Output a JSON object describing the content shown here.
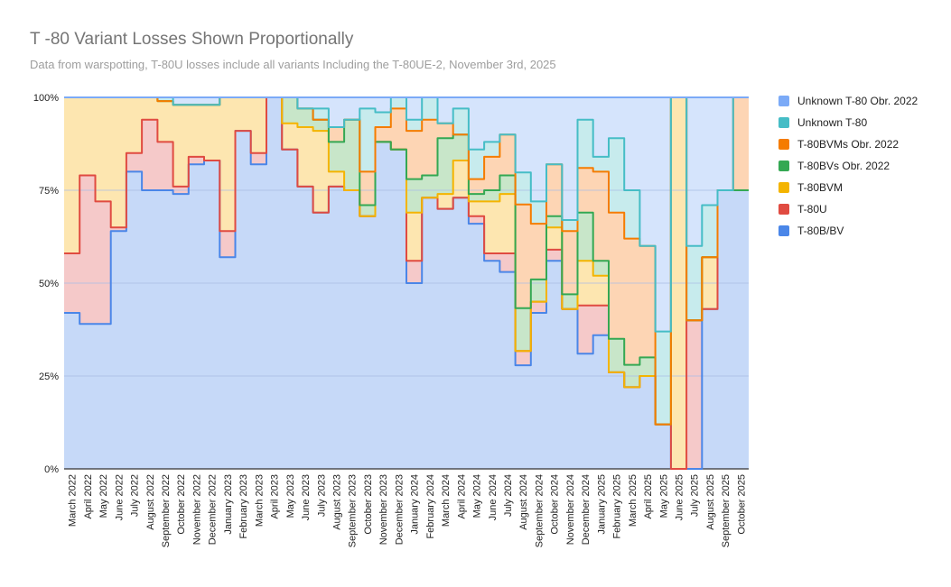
{
  "chart_data": {
    "type": "area",
    "stacking": "percent",
    "title": "T -80 Variant Losses Shown Proportionally",
    "subtitle": "Data from warspotting, T-80U losses include all variants Including the T-80UE-2, November 3rd, 2025",
    "y_ticks": [
      "0%",
      "25%",
      "50%",
      "75%",
      "100%"
    ],
    "ylim": [
      0,
      100
    ],
    "x_tick_labels": [
      "March 2022",
      "April 2022",
      "May 2022",
      "June 2022",
      "July 2022",
      "August 2022",
      "September 2022",
      "October 2022",
      "November 2022",
      "December 2022",
      "January 2023",
      "February 2023",
      "March 2023",
      "April 2023",
      "May 2023",
      "June 2023",
      "July 2023",
      "August 2023",
      "September 2023",
      "October 2023",
      "November 2023",
      "December 2023",
      "January 2024",
      "February 2024",
      "March 2024",
      "April 2024",
      "May 2024",
      "June 2024",
      "July 2024",
      "August 2024",
      "September 2024",
      "October 2024",
      "November 2024",
      "December 2024",
      "January 2025",
      "February 2025",
      "March 2025",
      "April 2025",
      "May 2025",
      "June 2025",
      "July 2025",
      "August 2025",
      "September 2025",
      "October 2025"
    ],
    "series": [
      {
        "name": "T-80B/BV",
        "color": "#4a86e8",
        "fill": "#c6d9f8",
        "values": [
          42,
          39,
          39,
          64,
          80,
          75,
          75,
          74,
          82,
          83,
          57,
          91,
          82,
          100,
          86,
          76,
          69,
          76,
          75,
          68,
          88,
          86,
          50,
          73,
          70,
          73,
          66,
          56,
          53,
          29,
          42,
          56,
          43,
          31,
          36,
          26,
          22,
          25,
          12,
          0,
          0,
          43,
          75,
          75
        ]
      },
      {
        "name": "T-80U",
        "color": "#e04b41",
        "fill": "#f5c9c9",
        "values": [
          16,
          40,
          33,
          1,
          5,
          19,
          13,
          2,
          2,
          0,
          7,
          0,
          3,
          0,
          0,
          0,
          0,
          0,
          0,
          0,
          0,
          0,
          6,
          0,
          0,
          0,
          2,
          2,
          5,
          4,
          3,
          3,
          0,
          13,
          8,
          0,
          0,
          0,
          0,
          0,
          40,
          0,
          0,
          0
        ]
      },
      {
        "name": "T-80BVM",
        "color": "#f4b400",
        "fill": "#fde6b0",
        "values": [
          42,
          21,
          28,
          35,
          15,
          6,
          11,
          22,
          14,
          15,
          36,
          9,
          15,
          0,
          7,
          16,
          22,
          4,
          0,
          0,
          0,
          0,
          13,
          0,
          4,
          10,
          4,
          14,
          16,
          0,
          0,
          6,
          0,
          12,
          8,
          0,
          0,
          0,
          0,
          100,
          0,
          14,
          0,
          0
        ]
      },
      {
        "name": "T-80BVs Obr. 2022",
        "color": "#34a853",
        "fill": "#c8e6c9",
        "values": [
          0,
          0,
          0,
          0,
          0,
          0,
          0,
          0,
          0,
          0,
          0,
          0,
          0,
          0,
          7,
          5,
          3,
          8,
          19,
          3,
          0,
          0,
          9,
          6,
          15,
          7,
          2,
          3,
          5,
          12,
          6,
          3,
          4,
          13,
          4,
          9,
          6,
          5,
          0,
          0,
          0,
          0,
          0,
          0
        ]
      },
      {
        "name": "T-80BVMs Obr. 2022",
        "color": "#f57c00",
        "fill": "#fdd5b4",
        "values": [
          0,
          0,
          0,
          0,
          0,
          0,
          0,
          0,
          0,
          0,
          0,
          0,
          0,
          0,
          0,
          0,
          0,
          4,
          0,
          9,
          4,
          11,
          13,
          15,
          4,
          0,
          4,
          9,
          11,
          29,
          15,
          14,
          17,
          12,
          24,
          34,
          34,
          30,
          0,
          0,
          0,
          0,
          0,
          25
        ]
      },
      {
        "name": "Unknown T-80",
        "color": "#46bdc6",
        "fill": "#c7ebed",
        "values": [
          0,
          0,
          0,
          0,
          0,
          0,
          1,
          0,
          0,
          0,
          0,
          0,
          0,
          0,
          0,
          0,
          3,
          0,
          0,
          17,
          4,
          3,
          3,
          6,
          0,
          7,
          8,
          4,
          0,
          9,
          6,
          0,
          3,
          13,
          4,
          20,
          13,
          0,
          25,
          0,
          20,
          14,
          0,
          0
        ]
      },
      {
        "name": "Unknown T-80 Obr. 2022",
        "color": "#7baaf7",
        "fill": "#d5e4fc",
        "values": [
          0,
          0,
          0,
          0,
          0,
          0,
          0,
          2,
          2,
          2,
          0,
          0,
          0,
          0,
          0,
          3,
          3,
          8,
          6,
          3,
          4,
          0,
          6,
          0,
          7,
          3,
          14,
          12,
          10,
          21,
          28,
          18,
          33,
          6,
          16,
          11,
          25,
          40,
          63,
          0,
          40,
          29,
          25,
          0
        ]
      }
    ],
    "legend_order": [
      "Unknown T-80 Obr. 2022",
      "Unknown T-80",
      "T-80BVMs Obr. 2022",
      "T-80BVs Obr. 2022",
      "T-80BVM",
      "T-80U",
      "T-80B/BV"
    ],
    "legend_position": "right"
  }
}
